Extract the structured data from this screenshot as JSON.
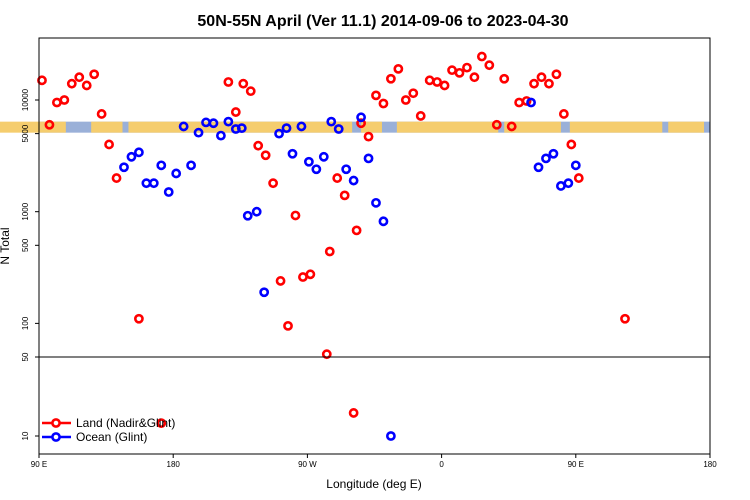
{
  "chart_data": {
    "type": "scatter",
    "title": "50N-55N April (Ver 11.1)   2014-09-06 to 2023-04-30",
    "xlabel": "Longitude (deg E)",
    "ylabel": "N Total",
    "x_scale": "longitude, 90E to 180 to 90W to 0 to 90E to 180",
    "x_ticks": [
      "90 E",
      "180",
      "90 W",
      "0",
      "90 E",
      "180"
    ],
    "y_scale": "log (broken axis: upper 50-25000, lower 5-50)",
    "y_ticks_upper": [
      "50",
      "100",
      "500",
      "1000",
      "5000",
      "10000"
    ],
    "y_ticks_lower": [
      "10",
      "50"
    ],
    "xlim": [
      90,
      540
    ],
    "colors": {
      "land": "#ff0000",
      "ocean": "#0000ff",
      "map_land": "#f5cd6e",
      "map_ocean": "#9ab0d8"
    },
    "legend_position": "bottom-left",
    "series": [
      {
        "name": "Land (Nadir&Glint)",
        "color": "#ff0000",
        "points": [
          [
            92,
            15000
          ],
          [
            97,
            6000
          ],
          [
            102,
            9500
          ],
          [
            107,
            10000
          ],
          [
            112,
            14000
          ],
          [
            117,
            16000
          ],
          [
            122,
            13500
          ],
          [
            127,
            17000
          ],
          [
            132,
            7500
          ],
          [
            137,
            4000
          ],
          [
            142,
            2000
          ],
          [
            157,
            110
          ],
          [
            172,
            13
          ],
          [
            217,
            14500
          ],
          [
            222,
            7800
          ],
          [
            227,
            14000
          ],
          [
            232,
            12000
          ],
          [
            237,
            3900
          ],
          [
            242,
            3200
          ],
          [
            247,
            1800
          ],
          [
            252,
            240
          ],
          [
            257,
            95
          ],
          [
            262,
            925
          ],
          [
            267,
            260
          ],
          [
            272,
            275
          ],
          [
            283,
            53
          ],
          [
            285,
            440
          ],
          [
            290,
            2000
          ],
          [
            295,
            1400
          ],
          [
            301,
            16
          ],
          [
            303,
            680
          ],
          [
            306,
            6200
          ],
          [
            311,
            4700
          ],
          [
            316,
            11000
          ],
          [
            321,
            9300
          ],
          [
            326,
            15500
          ],
          [
            331,
            19000
          ],
          [
            336,
            10000
          ],
          [
            341,
            11500
          ],
          [
            346,
            7200
          ],
          [
            352,
            15000
          ],
          [
            357,
            14500
          ],
          [
            362,
            13500
          ],
          [
            367,
            18500
          ],
          [
            372,
            17500
          ],
          [
            377,
            19500
          ],
          [
            382,
            16000
          ],
          [
            387,
            24500
          ],
          [
            392,
            20500
          ],
          [
            397,
            6000
          ],
          [
            402,
            15500
          ],
          [
            407,
            5800
          ],
          [
            412,
            9500
          ],
          [
            417,
            9800
          ],
          [
            422,
            14000
          ],
          [
            427,
            16000
          ],
          [
            432,
            14000
          ],
          [
            437,
            17000
          ],
          [
            442,
            7500
          ],
          [
            447,
            4000
          ],
          [
            452,
            2000
          ],
          [
            483,
            110
          ]
        ]
      },
      {
        "name": "Ocean (Glint)",
        "color": "#0000ff",
        "points": [
          [
            147,
            2500
          ],
          [
            152,
            3100
          ],
          [
            157,
            3400
          ],
          [
            162,
            1800
          ],
          [
            167,
            1800
          ],
          [
            172,
            2600
          ],
          [
            177,
            1500
          ],
          [
            182,
            2200
          ],
          [
            187,
            5800
          ],
          [
            192,
            2600
          ],
          [
            197,
            5100
          ],
          [
            202,
            6300
          ],
          [
            207,
            6200
          ],
          [
            212,
            4800
          ],
          [
            217,
            6400
          ],
          [
            222,
            5500
          ],
          [
            226,
            5600
          ],
          [
            230,
            920
          ],
          [
            236,
            1000
          ],
          [
            241,
            190
          ],
          [
            251,
            5000
          ],
          [
            256,
            5600
          ],
          [
            260,
            3300
          ],
          [
            266,
            5800
          ],
          [
            271,
            2800
          ],
          [
            276,
            2400
          ],
          [
            281,
            3100
          ],
          [
            286,
            6400
          ],
          [
            291,
            5500
          ],
          [
            296,
            2400
          ],
          [
            301,
            1900
          ],
          [
            306,
            7000
          ],
          [
            311,
            3000
          ],
          [
            316,
            1200
          ],
          [
            321,
            820
          ],
          [
            326,
            10
          ],
          [
            420,
            9500
          ],
          [
            425,
            2500
          ],
          [
            430,
            3000
          ],
          [
            435,
            3300
          ],
          [
            440,
            1700
          ],
          [
            445,
            1800
          ],
          [
            450,
            2600
          ]
        ]
      }
    ]
  }
}
